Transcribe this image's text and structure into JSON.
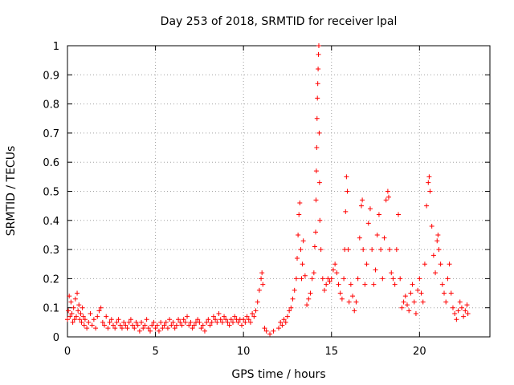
{
  "chart_data": {
    "type": "scatter",
    "title": "Day 253 of 2018, SRMTID for receiver lpal",
    "xlabel": "GPS time / hours",
    "ylabel": "SRMTID / TECUs",
    "xlim": [
      0,
      24
    ],
    "ylim": [
      0,
      1
    ],
    "x_ticks": [
      0,
      5,
      10,
      15,
      20
    ],
    "x_tick_labels": [
      "0",
      "5",
      "10",
      "15",
      "20"
    ],
    "y_ticks": [
      0,
      0.1,
      0.2,
      0.3,
      0.4,
      0.5,
      0.6,
      0.7,
      0.8,
      0.9,
      1
    ],
    "y_tick_labels": [
      "0",
      "0.1",
      "0.2",
      "0.3",
      "0.4",
      "0.5",
      "0.6",
      "0.7",
      "0.8",
      "0.9",
      "1"
    ],
    "grid": true,
    "marker": "+",
    "color": "#ff0000",
    "series": [
      {
        "name": "SRMTID",
        "points": [
          [
            0.0,
            0.06
          ],
          [
            0.05,
            0.09
          ],
          [
            0.1,
            0.14
          ],
          [
            0.15,
            0.07
          ],
          [
            0.2,
            0.12
          ],
          [
            0.25,
            0.08
          ],
          [
            0.3,
            0.05
          ],
          [
            0.35,
            0.1
          ],
          [
            0.4,
            0.06
          ],
          [
            0.45,
            0.13
          ],
          [
            0.5,
            0.07
          ],
          [
            0.55,
            0.15
          ],
          [
            0.6,
            0.09
          ],
          [
            0.65,
            0.11
          ],
          [
            0.7,
            0.06
          ],
          [
            0.75,
            0.08
          ],
          [
            0.8,
            0.05
          ],
          [
            0.85,
            0.1
          ],
          [
            0.9,
            0.07
          ],
          [
            0.95,
            0.04
          ],
          [
            1.0,
            0.06
          ],
          [
            1.1,
            0.03
          ],
          [
            1.2,
            0.05
          ],
          [
            1.3,
            0.08
          ],
          [
            1.4,
            0.04
          ],
          [
            1.5,
            0.06
          ],
          [
            1.6,
            0.03
          ],
          [
            1.7,
            0.07
          ],
          [
            1.8,
            0.09
          ],
          [
            1.9,
            0.1
          ],
          [
            2.0,
            0.05
          ],
          [
            2.1,
            0.04
          ],
          [
            2.2,
            0.07
          ],
          [
            2.3,
            0.03
          ],
          [
            2.4,
            0.05
          ],
          [
            2.5,
            0.06
          ],
          [
            2.6,
            0.04
          ],
          [
            2.7,
            0.03
          ],
          [
            2.8,
            0.05
          ],
          [
            2.9,
            0.06
          ],
          [
            3.0,
            0.04
          ],
          [
            3.1,
            0.03
          ],
          [
            3.2,
            0.05
          ],
          [
            3.3,
            0.04
          ],
          [
            3.4,
            0.03
          ],
          [
            3.5,
            0.05
          ],
          [
            3.6,
            0.06
          ],
          [
            3.7,
            0.04
          ],
          [
            3.8,
            0.03
          ],
          [
            3.9,
            0.05
          ],
          [
            4.0,
            0.04
          ],
          [
            4.1,
            0.02
          ],
          [
            4.2,
            0.05
          ],
          [
            4.3,
            0.03
          ],
          [
            4.4,
            0.04
          ],
          [
            4.5,
            0.06
          ],
          [
            4.6,
            0.03
          ],
          [
            4.7,
            0.02
          ],
          [
            4.8,
            0.04
          ],
          [
            4.9,
            0.05
          ],
          [
            5.0,
            0.03
          ],
          [
            5.1,
            0.04
          ],
          [
            5.2,
            0.02
          ],
          [
            5.3,
            0.05
          ],
          [
            5.4,
            0.03
          ],
          [
            5.5,
            0.04
          ],
          [
            5.6,
            0.05
          ],
          [
            5.7,
            0.03
          ],
          [
            5.8,
            0.06
          ],
          [
            5.9,
            0.04
          ],
          [
            6.0,
            0.05
          ],
          [
            6.1,
            0.03
          ],
          [
            6.2,
            0.04
          ],
          [
            6.3,
            0.06
          ],
          [
            6.4,
            0.05
          ],
          [
            6.5,
            0.04
          ],
          [
            6.6,
            0.06
          ],
          [
            6.7,
            0.05
          ],
          [
            6.8,
            0.07
          ],
          [
            6.9,
            0.04
          ],
          [
            7.0,
            0.05
          ],
          [
            7.1,
            0.03
          ],
          [
            7.2,
            0.04
          ],
          [
            7.3,
            0.05
          ],
          [
            7.4,
            0.06
          ],
          [
            7.5,
            0.05
          ],
          [
            7.6,
            0.03
          ],
          [
            7.7,
            0.04
          ],
          [
            7.8,
            0.02
          ],
          [
            7.9,
            0.05
          ],
          [
            8.0,
            0.06
          ],
          [
            8.1,
            0.04
          ],
          [
            8.2,
            0.05
          ],
          [
            8.3,
            0.07
          ],
          [
            8.4,
            0.06
          ],
          [
            8.5,
            0.05
          ],
          [
            8.6,
            0.08
          ],
          [
            8.7,
            0.06
          ],
          [
            8.8,
            0.05
          ],
          [
            8.9,
            0.07
          ],
          [
            9.0,
            0.06
          ],
          [
            9.1,
            0.05
          ],
          [
            9.2,
            0.04
          ],
          [
            9.3,
            0.06
          ],
          [
            9.4,
            0.05
          ],
          [
            9.5,
            0.07
          ],
          [
            9.6,
            0.06
          ],
          [
            9.7,
            0.05
          ],
          [
            9.8,
            0.06
          ],
          [
            9.9,
            0.04
          ],
          [
            10.0,
            0.06
          ],
          [
            10.1,
            0.05
          ],
          [
            10.2,
            0.07
          ],
          [
            10.3,
            0.06
          ],
          [
            10.4,
            0.05
          ],
          [
            10.5,
            0.08
          ],
          [
            10.6,
            0.07
          ],
          [
            10.7,
            0.09
          ],
          [
            10.8,
            0.12
          ],
          [
            10.9,
            0.16
          ],
          [
            11.0,
            0.2
          ],
          [
            11.05,
            0.22
          ],
          [
            11.1,
            0.18
          ],
          [
            11.2,
            0.03
          ],
          [
            11.3,
            0.02
          ],
          [
            11.5,
            0.01
          ],
          [
            11.7,
            0.02
          ],
          [
            12.0,
            0.03
          ],
          [
            12.1,
            0.05
          ],
          [
            12.2,
            0.04
          ],
          [
            12.3,
            0.06
          ],
          [
            12.4,
            0.05
          ],
          [
            12.5,
            0.07
          ],
          [
            12.6,
            0.09
          ],
          [
            12.7,
            0.1
          ],
          [
            12.8,
            0.13
          ],
          [
            12.9,
            0.16
          ],
          [
            13.0,
            0.2
          ],
          [
            13.05,
            0.27
          ],
          [
            13.1,
            0.35
          ],
          [
            13.15,
            0.42
          ],
          [
            13.2,
            0.46
          ],
          [
            13.25,
            0.3
          ],
          [
            13.3,
            0.2
          ],
          [
            13.35,
            0.25
          ],
          [
            13.4,
            0.33
          ],
          [
            13.5,
            0.21
          ],
          [
            13.6,
            0.11
          ],
          [
            13.7,
            0.13
          ],
          [
            13.8,
            0.15
          ],
          [
            13.9,
            0.2
          ],
          [
            14.0,
            0.22
          ],
          [
            14.05,
            0.31
          ],
          [
            14.1,
            0.36
          ],
          [
            14.12,
            0.47
          ],
          [
            14.14,
            0.57
          ],
          [
            14.16,
            0.65
          ],
          [
            14.18,
            0.75
          ],
          [
            14.2,
            0.82
          ],
          [
            14.22,
            0.87
          ],
          [
            14.24,
            0.92
          ],
          [
            14.26,
            0.97
          ],
          [
            14.28,
            1.0
          ],
          [
            14.3,
            0.7
          ],
          [
            14.32,
            0.53
          ],
          [
            14.34,
            0.4
          ],
          [
            14.4,
            0.3
          ],
          [
            14.5,
            0.2
          ],
          [
            14.6,
            0.16
          ],
          [
            14.7,
            0.18
          ],
          [
            14.8,
            0.2
          ],
          [
            14.9,
            0.19
          ],
          [
            15.0,
            0.2
          ],
          [
            15.1,
            0.23
          ],
          [
            15.2,
            0.25
          ],
          [
            15.3,
            0.22
          ],
          [
            15.4,
            0.18
          ],
          [
            15.5,
            0.15
          ],
          [
            15.6,
            0.13
          ],
          [
            15.7,
            0.2
          ],
          [
            15.75,
            0.3
          ],
          [
            15.8,
            0.43
          ],
          [
            15.85,
            0.55
          ],
          [
            15.9,
            0.5
          ],
          [
            15.95,
            0.3
          ],
          [
            16.0,
            0.12
          ],
          [
            16.1,
            0.18
          ],
          [
            16.2,
            0.14
          ],
          [
            16.3,
            0.09
          ],
          [
            16.4,
            0.12
          ],
          [
            16.5,
            0.2
          ],
          [
            16.6,
            0.34
          ],
          [
            16.7,
            0.45
          ],
          [
            16.75,
            0.47
          ],
          [
            16.8,
            0.3
          ],
          [
            16.9,
            0.18
          ],
          [
            17.0,
            0.25
          ],
          [
            17.1,
            0.39
          ],
          [
            17.2,
            0.44
          ],
          [
            17.3,
            0.3
          ],
          [
            17.4,
            0.18
          ],
          [
            17.5,
            0.23
          ],
          [
            17.6,
            0.35
          ],
          [
            17.7,
            0.42
          ],
          [
            17.8,
            0.3
          ],
          [
            17.9,
            0.2
          ],
          [
            18.0,
            0.34
          ],
          [
            18.1,
            0.47
          ],
          [
            18.2,
            0.5
          ],
          [
            18.25,
            0.48
          ],
          [
            18.3,
            0.3
          ],
          [
            18.4,
            0.22
          ],
          [
            18.5,
            0.2
          ],
          [
            18.6,
            0.18
          ],
          [
            18.7,
            0.3
          ],
          [
            18.8,
            0.42
          ],
          [
            18.9,
            0.2
          ],
          [
            19.0,
            0.1
          ],
          [
            19.1,
            0.12
          ],
          [
            19.2,
            0.14
          ],
          [
            19.3,
            0.11
          ],
          [
            19.4,
            0.09
          ],
          [
            19.5,
            0.15
          ],
          [
            19.6,
            0.18
          ],
          [
            19.7,
            0.12
          ],
          [
            19.8,
            0.08
          ],
          [
            19.9,
            0.16
          ],
          [
            20.0,
            0.2
          ],
          [
            20.1,
            0.15
          ],
          [
            20.2,
            0.12
          ],
          [
            20.3,
            0.25
          ],
          [
            20.4,
            0.45
          ],
          [
            20.5,
            0.53
          ],
          [
            20.55,
            0.55
          ],
          [
            20.6,
            0.5
          ],
          [
            20.7,
            0.38
          ],
          [
            20.8,
            0.28
          ],
          [
            20.9,
            0.22
          ],
          [
            21.0,
            0.33
          ],
          [
            21.05,
            0.35
          ],
          [
            21.1,
            0.3
          ],
          [
            21.2,
            0.25
          ],
          [
            21.3,
            0.18
          ],
          [
            21.4,
            0.15
          ],
          [
            21.5,
            0.12
          ],
          [
            21.6,
            0.2
          ],
          [
            21.7,
            0.25
          ],
          [
            21.8,
            0.15
          ],
          [
            21.9,
            0.1
          ],
          [
            22.0,
            0.08
          ],
          [
            22.1,
            0.06
          ],
          [
            22.2,
            0.09
          ],
          [
            22.3,
            0.12
          ],
          [
            22.4,
            0.1
          ],
          [
            22.5,
            0.07
          ],
          [
            22.6,
            0.09
          ],
          [
            22.7,
            0.11
          ],
          [
            22.75,
            0.08
          ]
        ]
      }
    ]
  }
}
